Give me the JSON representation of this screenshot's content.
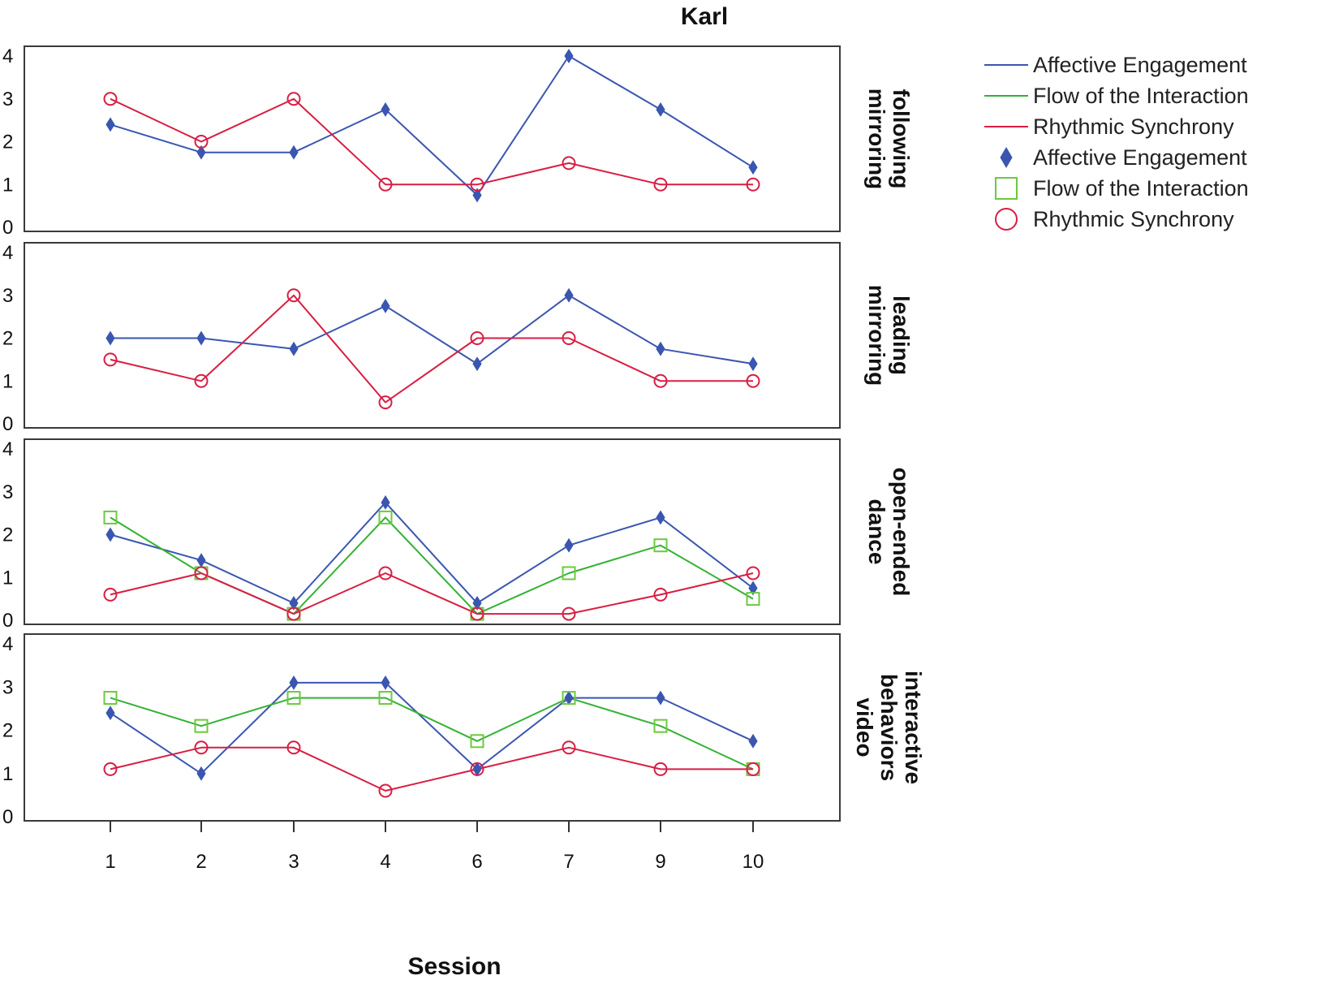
{
  "chart_data": {
    "type": "line",
    "title": "Karl",
    "xlabel": "Session",
    "ylabel": "",
    "categories": [
      "1",
      "2",
      "3",
      "4",
      "6",
      "7",
      "9",
      "10"
    ],
    "ylim": [
      0,
      4
    ],
    "yticks": [
      "0",
      "1",
      "2",
      "3",
      "4"
    ],
    "grid": false,
    "legend_position": "top-right",
    "legend": [
      {
        "label": "Affective Engagement",
        "kind": "line",
        "color": "#3a56b0"
      },
      {
        "label": "Flow of the Interaction",
        "kind": "line",
        "color": "#34b234"
      },
      {
        "label": "Rhythmic Synchrony",
        "kind": "line",
        "color": "#d81e44"
      },
      {
        "label": "Affective Engagement",
        "kind": "marker",
        "marker": "diamond",
        "color": "#3a56b0"
      },
      {
        "label": "Flow of the Interaction",
        "kind": "marker",
        "marker": "square",
        "color": "#6cc940"
      },
      {
        "label": "Rhythmic Synchrony",
        "kind": "marker",
        "marker": "circle",
        "color": "#d81e44"
      }
    ],
    "panels": [
      {
        "label": [
          "following",
          "mirroring"
        ],
        "series": [
          {
            "name": "Affective Engagement",
            "values": [
              2.4,
              1.75,
              1.75,
              2.75,
              0.75,
              4.0,
              2.75,
              1.4
            ]
          },
          {
            "name": "Rhythmic Synchrony",
            "values": [
              3.0,
              2.0,
              3.0,
              1.0,
              1.0,
              1.5,
              1.0,
              1.0
            ]
          }
        ]
      },
      {
        "label": [
          "leading",
          "mirroring"
        ],
        "series": [
          {
            "name": "Affective Engagement",
            "values": [
              2.0,
              2.0,
              1.75,
              2.75,
              1.4,
              3.0,
              1.75,
              1.4
            ]
          },
          {
            "name": "Rhythmic Synchrony",
            "values": [
              1.5,
              1.0,
              3.0,
              0.5,
              2.0,
              2.0,
              1.0,
              1.0
            ]
          }
        ]
      },
      {
        "label": [
          "open-ended",
          "dance"
        ],
        "series": [
          {
            "name": "Affective Engagement",
            "values": [
              2.0,
              1.4,
              0.4,
              2.75,
              0.4,
              1.75,
              2.4,
              0.75
            ]
          },
          {
            "name": "Flow of the Interaction",
            "values": [
              2.4,
              1.1,
              0.15,
              2.4,
              0.15,
              1.1,
              1.75,
              0.5
            ]
          },
          {
            "name": "Rhythmic Synchrony",
            "values": [
              0.6,
              1.1,
              0.15,
              1.1,
              0.15,
              0.15,
              0.6,
              1.1
            ]
          }
        ]
      },
      {
        "label": [
          "interactive",
          "behaviors",
          "video"
        ],
        "series": [
          {
            "name": "Affective Engagement",
            "values": [
              2.4,
              1.0,
              3.1,
              3.1,
              1.1,
              2.75,
              2.75,
              1.75
            ]
          },
          {
            "name": "Flow of the Interaction",
            "values": [
              2.75,
              2.1,
              2.75,
              2.75,
              1.75,
              2.75,
              2.1,
              1.1
            ]
          },
          {
            "name": "Rhythmic Synchrony",
            "values": [
              1.1,
              1.6,
              1.6,
              0.6,
              1.1,
              1.6,
              1.1,
              1.1
            ]
          }
        ]
      }
    ]
  },
  "colors": {
    "Affective Engagement": "#3a56b0",
    "Flow of the Interaction": "#34b234",
    "Flow of the Interaction marker": "#6cc940",
    "Rhythmic Synchrony": "#d81e44"
  }
}
